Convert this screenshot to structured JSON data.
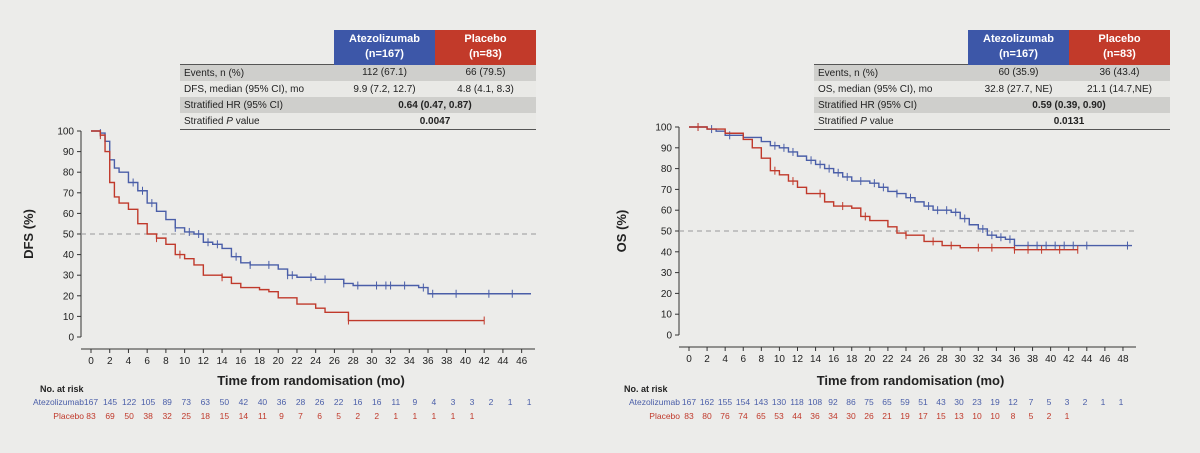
{
  "colors": {
    "atezolizumab": "#4a5ea8",
    "placebo": "#c0392b",
    "atezolizumab_header": "#3d57a8",
    "placebo_header": "#c23a2a"
  },
  "risk_header": "No. at risk",
  "panels": [
    {
      "table": {
        "arm1": "Atezolizumab",
        "arm1_n": "(n=167)",
        "arm2": "Placebo",
        "arm2_n": "(n=83)",
        "rows": [
          {
            "label": "Events, n (%)",
            "v1": "112 (67.1)",
            "v2": "66 (79.5)"
          },
          {
            "label": "DFS, median (95% CI), mo",
            "v1": "9.9 (7.2, 12.7)",
            "v2": "4.8 (4.1, 8.3)"
          },
          {
            "label": "Stratified HR (95% CI)",
            "v": "0.64 (0.47, 0.87)"
          },
          {
            "label_pre": "Stratified ",
            "label_it": "P",
            "label_post": " value",
            "v": "0.0047"
          }
        ]
      },
      "risk_table": {
        "arm1_label": "Atezolizumab",
        "arm1": [
          "167",
          "145",
          "122",
          "105",
          "89",
          "73",
          "63",
          "50",
          "42",
          "40",
          "36",
          "28",
          "26",
          "22",
          "16",
          "16",
          "11",
          "9",
          "4",
          "3",
          "3",
          "2",
          "1",
          "1"
        ],
        "arm2_label": "Placebo",
        "arm2": [
          "83",
          "69",
          "50",
          "38",
          "32",
          "25",
          "18",
          "15",
          "14",
          "11",
          "9",
          "7",
          "6",
          "5",
          "2",
          "2",
          "1",
          "1",
          "1",
          "1",
          "1"
        ]
      }
    },
    {
      "table": {
        "arm1": "Atezolizumab",
        "arm1_n": "(n=167)",
        "arm2": "Placebo",
        "arm2_n": "(n=83)",
        "rows": [
          {
            "label": "Events, n (%)",
            "v1": "60 (35.9)",
            "v2": "36 (43.4)"
          },
          {
            "label": "OS, median (95% CI), mo",
            "v1": "32.8 (27.7, NE)",
            "v2": "21.1 (14.7,NE)"
          },
          {
            "label": "Stratified HR (95% CI)",
            "v": "0.59 (0.39, 0.90)"
          },
          {
            "label_pre": "Stratified ",
            "label_it": "P",
            "label_post": " value",
            "v": "0.0131"
          }
        ]
      },
      "risk_table": {
        "arm1_label": "Atezolizumab",
        "arm1": [
          "167",
          "162",
          "155",
          "154",
          "143",
          "130",
          "118",
          "108",
          "92",
          "86",
          "75",
          "65",
          "59",
          "51",
          "43",
          "30",
          "23",
          "19",
          "12",
          "7",
          "5",
          "3",
          "2",
          "1",
          "1"
        ],
        "arm2_label": "Placebo",
        "arm2": [
          "83",
          "80",
          "76",
          "74",
          "65",
          "53",
          "44",
          "36",
          "34",
          "30",
          "26",
          "21",
          "19",
          "17",
          "15",
          "13",
          "10",
          "10",
          "8",
          "5",
          "2",
          "1"
        ]
      }
    }
  ],
  "chart_data": [
    {
      "type": "line",
      "step": true,
      "xlabel": "Time from randomisation (mo)",
      "ylabel": "DFS (%)",
      "xlim": [
        0,
        47
      ],
      "ylim": [
        0,
        100
      ],
      "xticks": [
        "0",
        "2",
        "4",
        "6",
        "8",
        "10",
        "12",
        "14",
        "16",
        "18",
        "20",
        "22",
        "24",
        "26",
        "28",
        "30",
        "32",
        "34",
        "36",
        "38",
        "40",
        "42",
        "44",
        "46"
      ],
      "yticks": [
        "0",
        "10",
        "20",
        "30",
        "40",
        "50",
        "60",
        "70",
        "80",
        "90",
        "100"
      ],
      "reference_line_y": 50,
      "series": [
        {
          "name": "Atezolizumab",
          "points": [
            [
              0,
              100
            ],
            [
              1,
              99
            ],
            [
              1.5,
              95
            ],
            [
              2,
              86
            ],
            [
              2.5,
              82
            ],
            [
              3,
              80
            ],
            [
              4,
              75
            ],
            [
              5,
              71
            ],
            [
              6,
              65
            ],
            [
              7,
              61
            ],
            [
              8,
              57
            ],
            [
              9,
              53
            ],
            [
              10,
              51
            ],
            [
              11,
              50
            ],
            [
              12,
              46
            ],
            [
              13,
              45
            ],
            [
              14,
              43
            ],
            [
              15,
              39
            ],
            [
              16,
              36
            ],
            [
              17,
              35
            ],
            [
              18,
              35
            ],
            [
              20,
              33
            ],
            [
              21,
              30
            ],
            [
              22,
              29
            ],
            [
              24,
              28
            ],
            [
              26,
              28
            ],
            [
              27,
              26
            ],
            [
              28,
              25
            ],
            [
              30,
              25
            ],
            [
              34,
              25
            ],
            [
              35,
              24
            ],
            [
              36,
              21
            ],
            [
              40,
              21
            ],
            [
              47,
              21
            ]
          ],
          "censor_x": [
            1,
            4.5,
            5.5,
            6.5,
            9,
            10.5,
            11.5,
            12.5,
            13.5,
            15.5,
            17,
            19,
            21,
            21.5,
            23.5,
            25,
            27,
            28.5,
            30.5,
            31.5,
            32,
            33.5,
            35.5,
            36.5,
            39,
            42.5,
            45
          ]
        },
        {
          "name": "Placebo",
          "points": [
            [
              0,
              100
            ],
            [
              1,
              98
            ],
            [
              1.5,
              90
            ],
            [
              2,
              75
            ],
            [
              2.5,
              68
            ],
            [
              3,
              65
            ],
            [
              4,
              62
            ],
            [
              5,
              55
            ],
            [
              6,
              50
            ],
            [
              7,
              48
            ],
            [
              8,
              45
            ],
            [
              9,
              40
            ],
            [
              10,
              38
            ],
            [
              11,
              35
            ],
            [
              12,
              30
            ],
            [
              14,
              29
            ],
            [
              15,
              26
            ],
            [
              16,
              24
            ],
            [
              18,
              23
            ],
            [
              19,
              22
            ],
            [
              20,
              19
            ],
            [
              22,
              16
            ],
            [
              24,
              14
            ],
            [
              25,
              12
            ],
            [
              27.5,
              12
            ],
            [
              27.5,
              8
            ],
            [
              30,
              8
            ],
            [
              35,
              8
            ],
            [
              42,
              8
            ]
          ],
          "censor_x": [
            1,
            7,
            9.5,
            14,
            27.5,
            42
          ]
        }
      ]
    },
    {
      "type": "line",
      "step": true,
      "xlabel": "Time from randomisation (mo)",
      "ylabel": "OS (%)",
      "xlim": [
        0,
        49
      ],
      "ylim": [
        0,
        100
      ],
      "xticks": [
        "0",
        "2",
        "4",
        "6",
        "8",
        "10",
        "12",
        "14",
        "16",
        "18",
        "20",
        "22",
        "24",
        "26",
        "28",
        "30",
        "32",
        "34",
        "36",
        "38",
        "40",
        "42",
        "44",
        "46",
        "48"
      ],
      "yticks": [
        "0",
        "10",
        "20",
        "30",
        "40",
        "50",
        "60",
        "70",
        "80",
        "90",
        "100"
      ],
      "reference_line_y": 50,
      "series": [
        {
          "name": "Atezolizumab",
          "points": [
            [
              0,
              100
            ],
            [
              2,
              99
            ],
            [
              3,
              98
            ],
            [
              4,
              96
            ],
            [
              6,
              95
            ],
            [
              8,
              93
            ],
            [
              9,
              91
            ],
            [
              10,
              90
            ],
            [
              11,
              88
            ],
            [
              12,
              86
            ],
            [
              13,
              84
            ],
            [
              14,
              82
            ],
            [
              15,
              80
            ],
            [
              16,
              78
            ],
            [
              17,
              76
            ],
            [
              18,
              74
            ],
            [
              20,
              73
            ],
            [
              21,
              71
            ],
            [
              22,
              69
            ],
            [
              23,
              68
            ],
            [
              24,
              66
            ],
            [
              25,
              64
            ],
            [
              26,
              62
            ],
            [
              27,
              60
            ],
            [
              28,
              60
            ],
            [
              29,
              59
            ],
            [
              30,
              56
            ],
            [
              31,
              53
            ],
            [
              32,
              51
            ],
            [
              33,
              48
            ],
            [
              34,
              47
            ],
            [
              35,
              46
            ],
            [
              36,
              43
            ],
            [
              37,
              43
            ],
            [
              40,
              43
            ],
            [
              49,
              43
            ]
          ],
          "censor_x": [
            1,
            2.5,
            4.5,
            9.5,
            10.5,
            11.5,
            13.5,
            14.5,
            15.5,
            16.5,
            17.5,
            19,
            20.5,
            21.5,
            23,
            24.5,
            26.5,
            27.5,
            28.5,
            29.5,
            30.5,
            32.5,
            33.5,
            34.5,
            35.5,
            37.5,
            38.5,
            39.5,
            40.5,
            41.5,
            42.5,
            44,
            48.5
          ]
        },
        {
          "name": "Placebo",
          "points": [
            [
              0,
              100
            ],
            [
              2,
              99
            ],
            [
              4,
              97
            ],
            [
              6,
              94
            ],
            [
              7,
              90
            ],
            [
              8,
              85
            ],
            [
              9,
              79
            ],
            [
              10,
              77
            ],
            [
              11,
              74
            ],
            [
              12,
              71
            ],
            [
              13,
              68
            ],
            [
              15,
              64
            ],
            [
              16,
              62
            ],
            [
              18,
              61
            ],
            [
              19,
              57
            ],
            [
              20,
              55
            ],
            [
              22,
              52
            ],
            [
              23,
              49
            ],
            [
              24,
              48
            ],
            [
              26,
              45
            ],
            [
              28,
              43
            ],
            [
              30,
              42
            ],
            [
              35,
              42
            ],
            [
              36,
              41
            ],
            [
              40,
              41
            ],
            [
              43,
              41
            ]
          ],
          "censor_x": [
            1,
            9.5,
            11.5,
            14.5,
            17,
            19.5,
            24,
            27,
            29,
            32,
            33.5,
            36,
            37.5,
            39,
            41,
            43
          ]
        }
      ]
    }
  ]
}
